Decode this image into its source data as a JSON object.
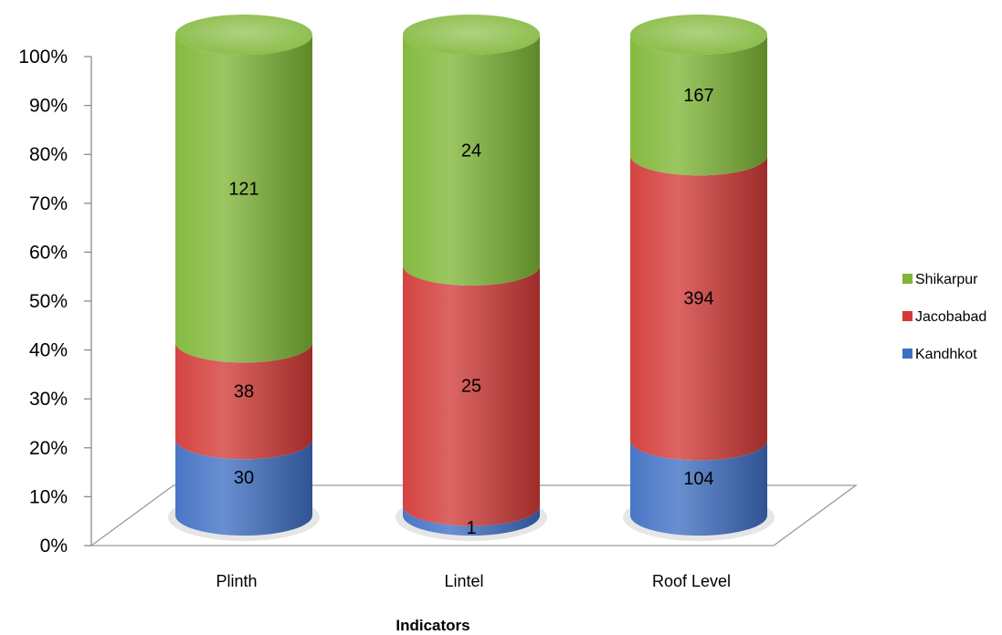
{
  "chart_data": {
    "type": "bar",
    "stacked": "percent",
    "style": "3d-cylinder",
    "categories": [
      "Plinth",
      "Lintel",
      "Roof Level"
    ],
    "series": [
      {
        "name": "Kandhkot",
        "values": [
          30,
          1,
          104
        ],
        "color": "#3F6FC4"
      },
      {
        "name": "Jacobabad",
        "values": [
          38,
          25,
          394
        ],
        "color": "#D23A37"
      },
      {
        "name": "Shikarpur",
        "values": [
          121,
          24,
          167
        ],
        "color": "#7FB636"
      }
    ],
    "xlabel": "Indicators",
    "ylabel": "",
    "y_ticks": [
      "0%",
      "10%",
      "20%",
      "30%",
      "40%",
      "50%",
      "60%",
      "70%",
      "80%",
      "90%",
      "100%"
    ],
    "ylim": [
      0,
      100
    ],
    "legend_position": "right",
    "grid": false
  }
}
